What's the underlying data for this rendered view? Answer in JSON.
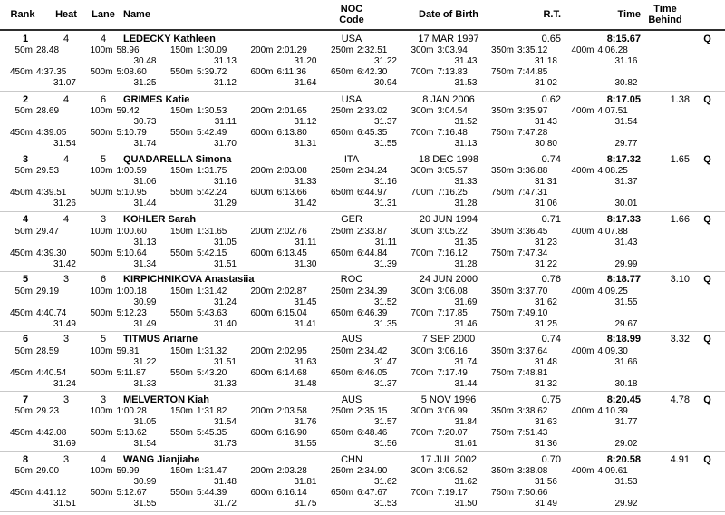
{
  "table": {
    "columns": {
      "rank": "Rank",
      "heat": "Heat",
      "lane": "Lane",
      "name": "Name",
      "noc_line1": "NOC",
      "noc_line2": "Code",
      "dob": "Date of Birth",
      "rt": "R.T.",
      "time": "Time",
      "behind_line1": "Time",
      "behind_line2": "Behind"
    }
  },
  "swimmers": [
    {
      "rank": "1",
      "heat": "4",
      "lane": "4",
      "name": "LEDECKY Kathleen",
      "noc": "USA",
      "dob": "17 MAR 1997",
      "rt": "0.65",
      "time": "8:15.67",
      "behind": "",
      "q": "Q",
      "splits": [
        {
          "label": "50m",
          "cum": "28.48",
          "lap": ""
        },
        {
          "label": "100m",
          "cum": "58.96",
          "lap": "30.48"
        },
        {
          "label": "150m",
          "cum": "1:30.09",
          "lap": "31.13"
        },
        {
          "label": "200m",
          "cum": "2:01.29",
          "lap": "31.20"
        },
        {
          "label": "250m",
          "cum": "2:32.51",
          "lap": "31.22"
        },
        {
          "label": "300m",
          "cum": "3:03.94",
          "lap": "31.43"
        },
        {
          "label": "350m",
          "cum": "3:35.12",
          "lap": "31.18"
        },
        {
          "label": "400m",
          "cum": "4:06.28",
          "lap": "31.16"
        },
        {
          "label": "450m",
          "cum": "4:37.35",
          "lap": "31.07"
        },
        {
          "label": "500m",
          "cum": "5:08.60",
          "lap": "31.25"
        },
        {
          "label": "550m",
          "cum": "5:39.72",
          "lap": "31.12"
        },
        {
          "label": "600m",
          "cum": "6:11.36",
          "lap": "31.64"
        },
        {
          "label": "650m",
          "cum": "6:42.30",
          "lap": "30.94"
        },
        {
          "label": "700m",
          "cum": "7:13.83",
          "lap": "31.53"
        },
        {
          "label": "750m",
          "cum": "7:44.85",
          "lap": "31.02"
        },
        {
          "label": "",
          "cum": "",
          "lap": "30.82"
        }
      ]
    },
    {
      "rank": "2",
      "heat": "4",
      "lane": "6",
      "name": "GRIMES Katie",
      "noc": "USA",
      "dob": "8 JAN 2006",
      "rt": "0.62",
      "time": "8:17.05",
      "behind": "1.38",
      "q": "Q",
      "splits": [
        {
          "label": "50m",
          "cum": "28.69",
          "lap": ""
        },
        {
          "label": "100m",
          "cum": "59.42",
          "lap": "30.73"
        },
        {
          "label": "150m",
          "cum": "1:30.53",
          "lap": "31.11"
        },
        {
          "label": "200m",
          "cum": "2:01.65",
          "lap": "31.12"
        },
        {
          "label": "250m",
          "cum": "2:33.02",
          "lap": "31.37"
        },
        {
          "label": "300m",
          "cum": "3:04.54",
          "lap": "31.52"
        },
        {
          "label": "350m",
          "cum": "3:35.97",
          "lap": "31.43"
        },
        {
          "label": "400m",
          "cum": "4:07.51",
          "lap": "31.54"
        },
        {
          "label": "450m",
          "cum": "4:39.05",
          "lap": "31.54"
        },
        {
          "label": "500m",
          "cum": "5:10.79",
          "lap": "31.74"
        },
        {
          "label": "550m",
          "cum": "5:42.49",
          "lap": "31.70"
        },
        {
          "label": "600m",
          "cum": "6:13.80",
          "lap": "31.31"
        },
        {
          "label": "650m",
          "cum": "6:45.35",
          "lap": "31.55"
        },
        {
          "label": "700m",
          "cum": "7:16.48",
          "lap": "31.13"
        },
        {
          "label": "750m",
          "cum": "7:47.28",
          "lap": "30.80"
        },
        {
          "label": "",
          "cum": "",
          "lap": "29.77"
        }
      ]
    },
    {
      "rank": "3",
      "heat": "4",
      "lane": "5",
      "name": "QUADARELLA Simona",
      "noc": "ITA",
      "dob": "18 DEC 1998",
      "rt": "0.74",
      "time": "8:17.32",
      "behind": "1.65",
      "q": "Q",
      "splits": [
        {
          "label": "50m",
          "cum": "29.53",
          "lap": ""
        },
        {
          "label": "100m",
          "cum": "1:00.59",
          "lap": "31.06"
        },
        {
          "label": "150m",
          "cum": "1:31.75",
          "lap": "31.16"
        },
        {
          "label": "200m",
          "cum": "2:03.08",
          "lap": "31.33"
        },
        {
          "label": "250m",
          "cum": "2:34.24",
          "lap": "31.16"
        },
        {
          "label": "300m",
          "cum": "3:05.57",
          "lap": "31.33"
        },
        {
          "label": "350m",
          "cum": "3:36.88",
          "lap": "31.31"
        },
        {
          "label": "400m",
          "cum": "4:08.25",
          "lap": "31.37"
        },
        {
          "label": "450m",
          "cum": "4:39.51",
          "lap": "31.26"
        },
        {
          "label": "500m",
          "cum": "5:10.95",
          "lap": "31.44"
        },
        {
          "label": "550m",
          "cum": "5:42.24",
          "lap": "31.29"
        },
        {
          "label": "600m",
          "cum": "6:13.66",
          "lap": "31.42"
        },
        {
          "label": "650m",
          "cum": "6:44.97",
          "lap": "31.31"
        },
        {
          "label": "700m",
          "cum": "7:16.25",
          "lap": "31.28"
        },
        {
          "label": "750m",
          "cum": "7:47.31",
          "lap": "31.06"
        },
        {
          "label": "",
          "cum": "",
          "lap": "30.01"
        }
      ]
    },
    {
      "rank": "4",
      "heat": "4",
      "lane": "3",
      "name": "KOHLER Sarah",
      "noc": "GER",
      "dob": "20 JUN 1994",
      "rt": "0.71",
      "time": "8:17.33",
      "behind": "1.66",
      "q": "Q",
      "splits": [
        {
          "label": "50m",
          "cum": "29.47",
          "lap": ""
        },
        {
          "label": "100m",
          "cum": "1:00.60",
          "lap": "31.13"
        },
        {
          "label": "150m",
          "cum": "1:31.65",
          "lap": "31.05"
        },
        {
          "label": "200m",
          "cum": "2:02.76",
          "lap": "31.11"
        },
        {
          "label": "250m",
          "cum": "2:33.87",
          "lap": "31.11"
        },
        {
          "label": "300m",
          "cum": "3:05.22",
          "lap": "31.35"
        },
        {
          "label": "350m",
          "cum": "3:36.45",
          "lap": "31.23"
        },
        {
          "label": "400m",
          "cum": "4:07.88",
          "lap": "31.43"
        },
        {
          "label": "450m",
          "cum": "4:39.30",
          "lap": "31.42"
        },
        {
          "label": "500m",
          "cum": "5:10.64",
          "lap": "31.34"
        },
        {
          "label": "550m",
          "cum": "5:42.15",
          "lap": "31.51"
        },
        {
          "label": "600m",
          "cum": "6:13.45",
          "lap": "31.30"
        },
        {
          "label": "650m",
          "cum": "6:44.84",
          "lap": "31.39"
        },
        {
          "label": "700m",
          "cum": "7:16.12",
          "lap": "31.28"
        },
        {
          "label": "750m",
          "cum": "7:47.34",
          "lap": "31.22"
        },
        {
          "label": "",
          "cum": "",
          "lap": "29.99"
        }
      ]
    },
    {
      "rank": "5",
      "heat": "3",
      "lane": "6",
      "name": "KIRPICHNIKOVA Anastasiia",
      "noc": "ROC",
      "dob": "24 JUN 2000",
      "rt": "0.76",
      "time": "8:18.77",
      "behind": "3.10",
      "q": "Q",
      "splits": [
        {
          "label": "50m",
          "cum": "29.19",
          "lap": ""
        },
        {
          "label": "100m",
          "cum": "1:00.18",
          "lap": "30.99"
        },
        {
          "label": "150m",
          "cum": "1:31.42",
          "lap": "31.24"
        },
        {
          "label": "200m",
          "cum": "2:02.87",
          "lap": "31.45"
        },
        {
          "label": "250m",
          "cum": "2:34.39",
          "lap": "31.52"
        },
        {
          "label": "300m",
          "cum": "3:06.08",
          "lap": "31.69"
        },
        {
          "label": "350m",
          "cum": "3:37.70",
          "lap": "31.62"
        },
        {
          "label": "400m",
          "cum": "4:09.25",
          "lap": "31.55"
        },
        {
          "label": "450m",
          "cum": "4:40.74",
          "lap": "31.49"
        },
        {
          "label": "500m",
          "cum": "5:12.23",
          "lap": "31.49"
        },
        {
          "label": "550m",
          "cum": "5:43.63",
          "lap": "31.40"
        },
        {
          "label": "600m",
          "cum": "6:15.04",
          "lap": "31.41"
        },
        {
          "label": "650m",
          "cum": "6:46.39",
          "lap": "31.35"
        },
        {
          "label": "700m",
          "cum": "7:17.85",
          "lap": "31.46"
        },
        {
          "label": "750m",
          "cum": "7:49.10",
          "lap": "31.25"
        },
        {
          "label": "",
          "cum": "",
          "lap": "29.67"
        }
      ]
    },
    {
      "rank": "6",
      "heat": "3",
      "lane": "5",
      "name": "TITMUS Ariarne",
      "noc": "AUS",
      "dob": "7 SEP 2000",
      "rt": "0.74",
      "time": "8:18.99",
      "behind": "3.32",
      "q": "Q",
      "splits": [
        {
          "label": "50m",
          "cum": "28.59",
          "lap": ""
        },
        {
          "label": "100m",
          "cum": "59.81",
          "lap": "31.22"
        },
        {
          "label": "150m",
          "cum": "1:31.32",
          "lap": "31.51"
        },
        {
          "label": "200m",
          "cum": "2:02.95",
          "lap": "31.63"
        },
        {
          "label": "250m",
          "cum": "2:34.42",
          "lap": "31.47"
        },
        {
          "label": "300m",
          "cum": "3:06.16",
          "lap": "31.74"
        },
        {
          "label": "350m",
          "cum": "3:37.64",
          "lap": "31.48"
        },
        {
          "label": "400m",
          "cum": "4:09.30",
          "lap": "31.66"
        },
        {
          "label": "450m",
          "cum": "4:40.54",
          "lap": "31.24"
        },
        {
          "label": "500m",
          "cum": "5:11.87",
          "lap": "31.33"
        },
        {
          "label": "550m",
          "cum": "5:43.20",
          "lap": "31.33"
        },
        {
          "label": "600m",
          "cum": "6:14.68",
          "lap": "31.48"
        },
        {
          "label": "650m",
          "cum": "6:46.05",
          "lap": "31.37"
        },
        {
          "label": "700m",
          "cum": "7:17.49",
          "lap": "31.44"
        },
        {
          "label": "750m",
          "cum": "7:48.81",
          "lap": "31.32"
        },
        {
          "label": "",
          "cum": "",
          "lap": "30.18"
        }
      ]
    },
    {
      "rank": "7",
      "heat": "3",
      "lane": "3",
      "name": "MELVERTON Kiah",
      "noc": "AUS",
      "dob": "5 NOV 1996",
      "rt": "0.75",
      "time": "8:20.45",
      "behind": "4.78",
      "q": "Q",
      "splits": [
        {
          "label": "50m",
          "cum": "29.23",
          "lap": ""
        },
        {
          "label": "100m",
          "cum": "1:00.28",
          "lap": "31.05"
        },
        {
          "label": "150m",
          "cum": "1:31.82",
          "lap": "31.54"
        },
        {
          "label": "200m",
          "cum": "2:03.58",
          "lap": "31.76"
        },
        {
          "label": "250m",
          "cum": "2:35.15",
          "lap": "31.57"
        },
        {
          "label": "300m",
          "cum": "3:06.99",
          "lap": "31.84"
        },
        {
          "label": "350m",
          "cum": "3:38.62",
          "lap": "31.63"
        },
        {
          "label": "400m",
          "cum": "4:10.39",
          "lap": "31.77"
        },
        {
          "label": "450m",
          "cum": "4:42.08",
          "lap": "31.69"
        },
        {
          "label": "500m",
          "cum": "5:13.62",
          "lap": "31.54"
        },
        {
          "label": "550m",
          "cum": "5:45.35",
          "lap": "31.73"
        },
        {
          "label": "600m",
          "cum": "6:16.90",
          "lap": "31.55"
        },
        {
          "label": "650m",
          "cum": "6:48.46",
          "lap": "31.56"
        },
        {
          "label": "700m",
          "cum": "7:20.07",
          "lap": "31.61"
        },
        {
          "label": "750m",
          "cum": "7:51.43",
          "lap": "31.36"
        },
        {
          "label": "",
          "cum": "",
          "lap": "29.02"
        }
      ]
    },
    {
      "rank": "8",
      "heat": "3",
      "lane": "4",
      "name": "WANG Jianjiahe",
      "noc": "CHN",
      "dob": "17 JUL 2002",
      "rt": "0.70",
      "time": "8:20.58",
      "behind": "4.91",
      "q": "Q",
      "splits": [
        {
          "label": "50m",
          "cum": "29.00",
          "lap": ""
        },
        {
          "label": "100m",
          "cum": "59.99",
          "lap": "30.99"
        },
        {
          "label": "150m",
          "cum": "1:31.47",
          "lap": "31.48"
        },
        {
          "label": "200m",
          "cum": "2:03.28",
          "lap": "31.81"
        },
        {
          "label": "250m",
          "cum": "2:34.90",
          "lap": "31.62"
        },
        {
          "label": "300m",
          "cum": "3:06.52",
          "lap": "31.62"
        },
        {
          "label": "350m",
          "cum": "3:38.08",
          "lap": "31.56"
        },
        {
          "label": "400m",
          "cum": "4:09.61",
          "lap": "31.53"
        },
        {
          "label": "450m",
          "cum": "4:41.12",
          "lap": "31.51"
        },
        {
          "label": "500m",
          "cum": "5:12.67",
          "lap": "31.55"
        },
        {
          "label": "550m",
          "cum": "5:44.39",
          "lap": "31.72"
        },
        {
          "label": "600m",
          "cum": "6:16.14",
          "lap": "31.75"
        },
        {
          "label": "650m",
          "cum": "6:47.67",
          "lap": "31.53"
        },
        {
          "label": "700m",
          "cum": "7:19.17",
          "lap": "31.50"
        },
        {
          "label": "750m",
          "cum": "7:50.66",
          "lap": "31.49"
        },
        {
          "label": "",
          "cum": "",
          "lap": "29.92"
        }
      ]
    }
  ]
}
